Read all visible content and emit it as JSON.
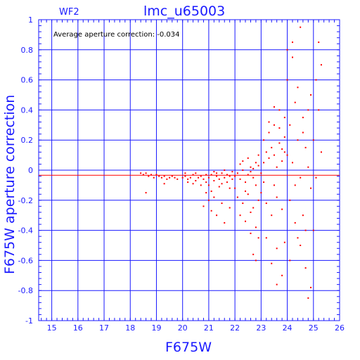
{
  "chart_data": {
    "type": "scatter",
    "title": "lmc_u65003",
    "subtitle": "WF2",
    "xlabel": "F675W",
    "ylabel": "F675W aperture correction",
    "annotation": "Average aperture correction: -0.034",
    "xlim": [
      14.5,
      26
    ],
    "ylim": [
      -1,
      1
    ],
    "x_ticks": [
      "15",
      "16",
      "17",
      "18",
      "19",
      "20",
      "21",
      "22",
      "23",
      "24",
      "25",
      "26"
    ],
    "y_ticks": [
      "1",
      "0.8",
      "0.6",
      "0.4",
      "0.2",
      "0",
      "-0.2",
      "-0.4",
      "-0.6",
      "-0.8",
      "-1"
    ],
    "average_line": -0.034,
    "grid": true,
    "colors": {
      "axes": "#1a1aff",
      "points": "#ff0000",
      "text": "#000000"
    },
    "series": [
      {
        "values": [
          [
            18.4,
            -0.02
          ],
          [
            18.5,
            -0.03
          ],
          [
            18.6,
            -0.02
          ],
          [
            18.7,
            -0.04
          ],
          [
            18.8,
            -0.03
          ],
          [
            18.9,
            -0.05
          ],
          [
            19.0,
            -0.03
          ],
          [
            19.1,
            -0.04
          ],
          [
            19.2,
            -0.05
          ],
          [
            19.3,
            -0.04
          ],
          [
            19.4,
            -0.06
          ],
          [
            19.5,
            -0.05
          ],
          [
            19.6,
            -0.04
          ],
          [
            19.7,
            -0.05
          ],
          [
            19.8,
            -0.06
          ],
          [
            18.6,
            -0.15
          ],
          [
            19.3,
            -0.09
          ],
          [
            20.0,
            -0.05
          ],
          [
            20.1,
            -0.04
          ],
          [
            20.2,
            -0.06
          ],
          [
            20.3,
            -0.05
          ],
          [
            20.4,
            -0.03
          ],
          [
            20.5,
            -0.07
          ],
          [
            20.6,
            -0.05
          ],
          [
            20.7,
            -0.04
          ],
          [
            20.8,
            -0.06
          ],
          [
            20.9,
            -0.08
          ],
          [
            20.1,
            -0.02
          ],
          [
            20.4,
            -0.09
          ],
          [
            20.7,
            -0.1
          ],
          [
            20.9,
            -0.03
          ],
          [
            20.5,
            -0.02
          ],
          [
            20.2,
            -0.08
          ],
          [
            21.0,
            -0.05
          ],
          [
            21.1,
            -0.03
          ],
          [
            21.2,
            -0.07
          ],
          [
            21.3,
            -0.04
          ],
          [
            21.4,
            -0.06
          ],
          [
            21.5,
            -0.02
          ],
          [
            21.6,
            -0.05
          ],
          [
            21.7,
            -0.08
          ],
          [
            21.8,
            -0.04
          ],
          [
            21.9,
            -0.06
          ],
          [
            21.0,
            -0.1
          ],
          [
            21.2,
            -0.01
          ],
          [
            21.4,
            -0.11
          ],
          [
            21.6,
            0.0
          ],
          [
            21.8,
            -0.12
          ],
          [
            21.1,
            -0.14
          ],
          [
            21.3,
            -0.02
          ],
          [
            21.5,
            -0.09
          ],
          [
            21.7,
            -0.03
          ],
          [
            21.9,
            -0.01
          ],
          [
            21.2,
            -0.18
          ],
          [
            21.5,
            -0.22
          ],
          [
            21.0,
            -0.2
          ],
          [
            21.3,
            -0.3
          ],
          [
            21.6,
            -0.35
          ],
          [
            21.8,
            -0.25
          ],
          [
            21.1,
            -0.27
          ],
          [
            20.8,
            -0.24
          ],
          [
            20.9,
            -0.15
          ],
          [
            22.0,
            -0.04
          ],
          [
            22.1,
            -0.02
          ],
          [
            22.2,
            -0.06
          ],
          [
            22.3,
            0.0
          ],
          [
            22.4,
            -0.08
          ],
          [
            22.5,
            -0.03
          ],
          [
            22.6,
            0.02
          ],
          [
            22.7,
            -0.05
          ],
          [
            22.8,
            -0.1
          ],
          [
            22.9,
            0.03
          ],
          [
            22.0,
            -0.12
          ],
          [
            22.2,
            0.04
          ],
          [
            22.4,
            -0.14
          ],
          [
            22.6,
            -0.01
          ],
          [
            22.8,
            0.05
          ],
          [
            22.1,
            -0.18
          ],
          [
            22.3,
            -0.22
          ],
          [
            22.5,
            -0.16
          ],
          [
            22.7,
            -0.25
          ],
          [
            22.9,
            -0.2
          ],
          [
            22.2,
            -0.3
          ],
          [
            22.4,
            -0.34
          ],
          [
            22.6,
            -0.28
          ],
          [
            22.8,
            -0.38
          ],
          [
            22.9,
            -0.45
          ],
          [
            22.3,
            0.06
          ],
          [
            22.5,
            0.08
          ],
          [
            22.7,
            0.01
          ],
          [
            22.9,
            0.1
          ],
          [
            22.6,
            -0.42
          ],
          [
            22.8,
            -0.6
          ],
          [
            22.7,
            -0.56
          ],
          [
            23.0,
            -0.02
          ],
          [
            23.1,
            0.05
          ],
          [
            23.2,
            0.12
          ],
          [
            23.3,
            0.08
          ],
          [
            23.4,
            0.15
          ],
          [
            23.5,
            0.1
          ],
          [
            23.6,
            0.02
          ],
          [
            23.7,
            0.18
          ],
          [
            23.8,
            0.06
          ],
          [
            23.9,
            0.22
          ],
          [
            23.0,
            -0.15
          ],
          [
            23.2,
            -0.22
          ],
          [
            23.4,
            -0.3
          ],
          [
            23.6,
            -0.18
          ],
          [
            23.8,
            -0.26
          ],
          [
            23.1,
            0.2
          ],
          [
            23.3,
            0.25
          ],
          [
            23.5,
            0.3
          ],
          [
            23.7,
            0.28
          ],
          [
            23.9,
            0.35
          ],
          [
            23.2,
            -0.45
          ],
          [
            23.4,
            -0.62
          ],
          [
            23.6,
            -0.52
          ],
          [
            23.8,
            -0.7
          ],
          [
            23.9,
            -0.48
          ],
          [
            23.3,
            0.32
          ],
          [
            23.5,
            -0.1
          ],
          [
            23.7,
            0.4
          ],
          [
            23.9,
            0.12
          ],
          [
            23.1,
            -0.08
          ],
          [
            23.5,
            0.42
          ],
          [
            23.8,
            0.14
          ],
          [
            23.6,
            -0.76
          ],
          [
            24.0,
            0.1
          ],
          [
            24.1,
            0.3
          ],
          [
            24.2,
            0.05
          ],
          [
            24.3,
            0.45
          ],
          [
            24.4,
            0.2
          ],
          [
            24.5,
            -0.05
          ],
          [
            24.6,
            0.35
          ],
          [
            24.7,
            0.15
          ],
          [
            24.8,
            0.02
          ],
          [
            24.9,
            -0.12
          ],
          [
            24.0,
            0.6
          ],
          [
            24.1,
            -0.2
          ],
          [
            24.2,
            0.75
          ],
          [
            24.3,
            -0.35
          ],
          [
            24.4,
            0.55
          ],
          [
            24.5,
            -0.5
          ],
          [
            24.6,
            0.25
          ],
          [
            24.7,
            -0.65
          ],
          [
            24.8,
            0.4
          ],
          [
            24.9,
            -0.78
          ],
          [
            24.0,
            0.8
          ],
          [
            24.2,
            0.85
          ],
          [
            24.3,
            -0.1
          ],
          [
            24.5,
            0.95
          ],
          [
            24.6,
            -0.3
          ],
          [
            24.8,
            -0.85
          ],
          [
            24.9,
            0.5
          ],
          [
            24.1,
            -0.6
          ],
          [
            24.4,
            -0.45
          ],
          [
            24.7,
            -0.4
          ],
          [
            25.0,
            0.2
          ],
          [
            25.1,
            0.6
          ],
          [
            25.2,
            0.85
          ],
          [
            25.3,
            0.7
          ],
          [
            25.0,
            -0.4
          ],
          [
            25.1,
            -0.05
          ],
          [
            25.2,
            0.4
          ],
          [
            25.3,
            0.12
          ]
        ]
      }
    ]
  }
}
